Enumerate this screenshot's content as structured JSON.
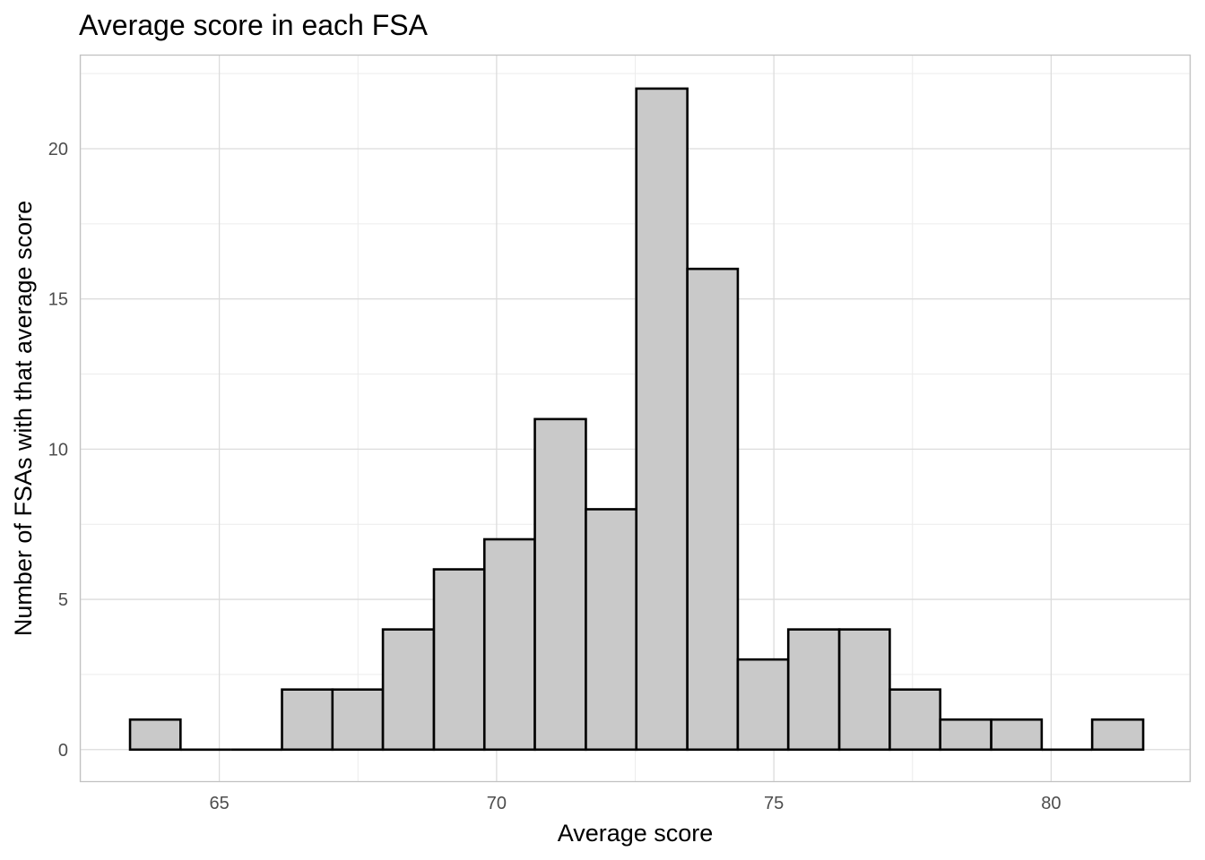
{
  "chart_data": {
    "type": "bar",
    "title": "Average score in each FSA",
    "xlabel": "Average score",
    "ylabel": "Number of FSAs with that average score",
    "xlim": [
      62.5,
      82.5
    ],
    "ylim": [
      -1.05,
      23.1
    ],
    "xticks": [
      65,
      70,
      75,
      80
    ],
    "yticks": [
      0,
      5,
      10,
      15,
      20
    ],
    "grid": true,
    "bins": [
      {
        "x0": 63.39,
        "x1": 64.3,
        "count": 1
      },
      {
        "x0": 64.3,
        "x1": 65.21,
        "count": 0
      },
      {
        "x0": 65.21,
        "x1": 66.13,
        "count": 0
      },
      {
        "x0": 66.13,
        "x1": 67.04,
        "count": 2
      },
      {
        "x0": 67.04,
        "x1": 67.95,
        "count": 2
      },
      {
        "x0": 67.95,
        "x1": 68.87,
        "count": 4
      },
      {
        "x0": 68.87,
        "x1": 69.78,
        "count": 6
      },
      {
        "x0": 69.78,
        "x1": 70.69,
        "count": 7
      },
      {
        "x0": 70.69,
        "x1": 71.61,
        "count": 11
      },
      {
        "x0": 71.61,
        "x1": 72.52,
        "count": 8
      },
      {
        "x0": 72.52,
        "x1": 73.44,
        "count": 22
      },
      {
        "x0": 73.44,
        "x1": 74.35,
        "count": 16
      },
      {
        "x0": 74.35,
        "x1": 75.26,
        "count": 3
      },
      {
        "x0": 75.26,
        "x1": 76.18,
        "count": 4
      },
      {
        "x0": 76.18,
        "x1": 77.09,
        "count": 4
      },
      {
        "x0": 77.09,
        "x1": 78.0,
        "count": 2
      },
      {
        "x0": 78.0,
        "x1": 78.92,
        "count": 1
      },
      {
        "x0": 78.92,
        "x1": 79.83,
        "count": 1
      },
      {
        "x0": 79.83,
        "x1": 80.74,
        "count": 0
      },
      {
        "x0": 80.74,
        "x1": 81.66,
        "count": 1
      }
    ],
    "colors": {
      "bar_fill": "#c9c9c9",
      "bar_stroke": "#000000",
      "grid_major": "#dcdcdc",
      "grid_minor": "#ececec",
      "panel_border": "#c2c2c2"
    }
  }
}
